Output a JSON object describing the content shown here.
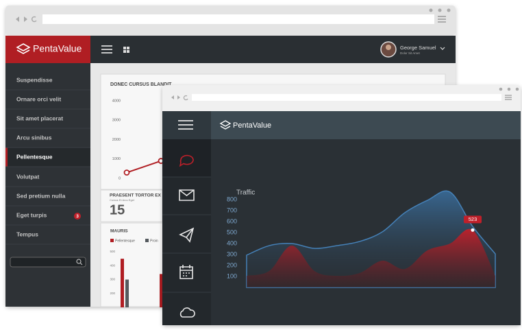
{
  "back_window": {
    "brand": "PentaValue",
    "user": {
      "name": "George Samuel",
      "role": "Dolor Sit Amet"
    },
    "sidebar": {
      "items": [
        "Suspendisse",
        "Ornare orci velit",
        "Sit amet placerat",
        "Arcu sinibus",
        "Pellentesque",
        "Volutpat",
        "Sed pretium nulla",
        "Eget turpis",
        "Tempus"
      ],
      "badge": 3
    },
    "line_chart": {
      "type": "line",
      "title": "DONEC CURSUS BLANDIT",
      "ylim": [
        0,
        4000
      ],
      "yticks": [
        0,
        1000,
        2000,
        3000,
        4000
      ],
      "values": [
        300,
        900
      ],
      "color": "#b01e23"
    },
    "stat": {
      "title": "PRAESENT TORTOR EX",
      "subtitle": "Cursus Et Arcu Eget",
      "value": 15
    },
    "bar_chart": {
      "type": "bar",
      "title": "MAURIS",
      "ylim": [
        100,
        500
      ],
      "yticks": [
        200,
        300,
        400,
        500
      ],
      "series": [
        {
          "name": "Pellentesque",
          "color": "#b01e23",
          "values": [
            450,
            340
          ]
        },
        {
          "name": "Proin",
          "color": "#555a5e",
          "values": [
            300,
            null
          ]
        }
      ]
    }
  },
  "front_window": {
    "brand": "PentaValue",
    "chart": {
      "type": "area",
      "title": "Traffic",
      "ylim": [
        0,
        900
      ],
      "yticks": [
        100,
        200,
        300,
        400,
        500,
        600,
        700,
        800
      ],
      "categories": [
        null,
        null,
        null,
        null,
        null,
        null,
        null,
        null,
        null,
        null,
        null,
        null
      ],
      "series": [
        {
          "color": "#4a90d0",
          "values": [
            294,
            381,
            400,
            356,
            381,
            419,
            506,
            681,
            794,
            869,
            556,
            306
          ]
        },
        {
          "color": "#b01e23",
          "values": [
            106,
            150,
            381,
            150,
            106,
            131,
            244,
            169,
            338,
            400,
            523,
            106
          ]
        }
      ]
    }
  }
}
